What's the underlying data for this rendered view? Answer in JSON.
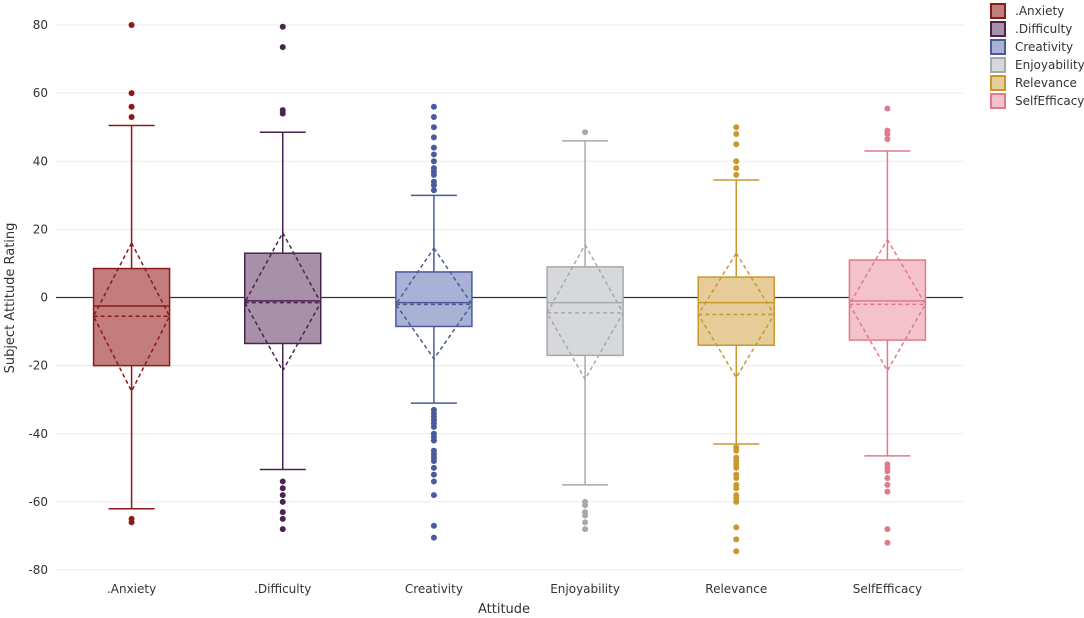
{
  "chart_data": {
    "type": "box",
    "title": "",
    "xlabel": "Attitude",
    "ylabel": "Subject Attitude Rating",
    "ylim": [
      -82,
      85
    ],
    "yticks": [
      -80,
      -60,
      -40,
      -20,
      0,
      20,
      40,
      60,
      80
    ],
    "grid": true,
    "zero_line": true,
    "legend_position": "top-right",
    "categories": [
      ".Anxiety",
      ".Difficulty",
      "Creativity",
      "Enjoyability",
      "Relevance",
      "SelfEfficacy"
    ],
    "series": [
      {
        "name": ".Anxiety",
        "color": "#8b1a1a",
        "fill": "#c47d7d",
        "q1": -20,
        "median": -2.5,
        "q3": 8.5,
        "whisker_low": -62,
        "whisker_high": 50.5,
        "mean": -5.5,
        "mean_minus_sd": -27.5,
        "mean_plus_sd": 16,
        "outliers": [
          80,
          60,
          56,
          53,
          -65,
          -66
        ]
      },
      {
        "name": ".Difficulty",
        "color": "#4a2450",
        "fill": "#a891a8",
        "q1": -13.5,
        "median": -1,
        "q3": 13,
        "whisker_low": -50.5,
        "whisker_high": 48.5,
        "mean": -1.5,
        "mean_minus_sd": -21.5,
        "mean_plus_sd": 19,
        "outliers": [
          79.5,
          73.5,
          55,
          54,
          -54,
          -56,
          -58,
          -60,
          -63,
          -65,
          -68
        ]
      },
      {
        "name": "Creativity",
        "color": "#4a5a9a",
        "fill": "#a9b2d5",
        "q1": -8.5,
        "median": -1.5,
        "q3": 7.5,
        "whisker_low": -31,
        "whisker_high": 30,
        "mean": -2,
        "mean_minus_sd": -18,
        "mean_plus_sd": 14.5,
        "outliers": [
          56,
          53,
          50,
          47,
          44,
          42,
          40,
          38,
          37,
          36,
          34,
          33,
          31.5,
          -33,
          -34,
          -35,
          -36,
          -37,
          -38,
          -40,
          -41,
          -42,
          -45,
          -46,
          -47,
          -48,
          -50,
          -52,
          -54,
          -58,
          -67,
          -70.5
        ]
      },
      {
        "name": "Enjoyability",
        "color": "#a6a9ad",
        "fill": "#d6d8db",
        "q1": -17,
        "median": -1.5,
        "q3": 9,
        "whisker_low": -55,
        "whisker_high": 46,
        "mean": -4.5,
        "mean_minus_sd": -24,
        "mean_plus_sd": 15.5,
        "outliers": [
          48.5,
          -60,
          -61,
          -63,
          -64,
          -66,
          -68
        ]
      },
      {
        "name": "Relevance",
        "color": "#c9992f",
        "fill": "#e6cc98",
        "q1": -14,
        "median": -1.5,
        "q3": 6,
        "whisker_low": -43,
        "whisker_high": 34.5,
        "mean": -5,
        "mean_minus_sd": -23.5,
        "mean_plus_sd": 13,
        "outliers": [
          50,
          48,
          45,
          40,
          38,
          36,
          -44,
          -45,
          -47,
          -48,
          -49,
          -50,
          -52,
          -53,
          -55,
          -56,
          -58,
          -59,
          -60,
          -67.5,
          -71,
          -74.5
        ]
      },
      {
        "name": "SelfEfficacy",
        "color": "#e07a8c",
        "fill": "#f3c2ca",
        "q1": -12.5,
        "median": -1,
        "q3": 11,
        "whisker_low": -46.5,
        "whisker_high": 43,
        "mean": -2,
        "mean_minus_sd": -21.5,
        "mean_plus_sd": 17,
        "outliers": [
          55.5,
          49,
          48,
          46.5,
          -49,
          -50,
          -51,
          -53,
          -55,
          -57,
          -68,
          -72
        ]
      }
    ]
  }
}
